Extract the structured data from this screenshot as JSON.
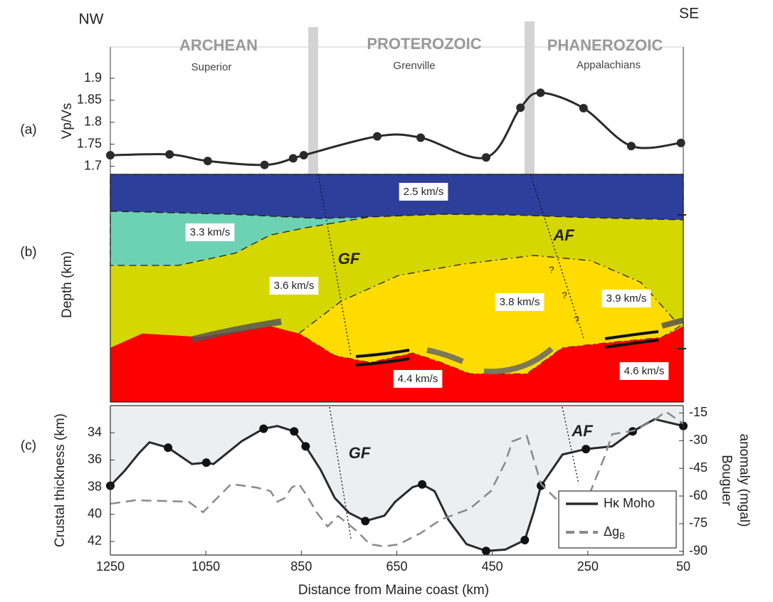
{
  "header": {
    "left": "NW",
    "right": "SE",
    "terranes": [
      {
        "name": "ARCHEAN",
        "province": "Superior"
      },
      {
        "name": "PROTEROZOIC",
        "province": "Grenville"
      },
      {
        "name": "PHANEROZOIC",
        "province": "Appalachians"
      }
    ]
  },
  "chart_data": [
    {
      "type": "line",
      "panel_label": "(a)",
      "ylabel": "Vp/Vs",
      "xlim": [
        1250,
        50
      ],
      "ylim": [
        1.68,
        1.9
      ],
      "yticks": [
        1.7,
        1.75,
        1.8,
        1.85,
        1.9
      ],
      "series": [
        {
          "color": "#2a2a2a",
          "smooth": true,
          "markers": true,
          "x": [
            1250,
            1126,
            1046,
            927,
            867,
            845,
            691,
            600,
            463,
            391,
            349,
            259,
            159,
            55
          ],
          "values": [
            1.725,
            1.727,
            1.712,
            1.703,
            1.718,
            1.725,
            1.768,
            1.765,
            1.72,
            1.833,
            1.867,
            1.832,
            1.746,
            1.753
          ]
        }
      ]
    },
    {
      "type": "section",
      "panel_label": "(b)",
      "ylabel": "Depth (km)",
      "xlim": [
        1250,
        50
      ],
      "ylim": [
        -1,
        51.5
      ],
      "invert_y": true,
      "yticks": [
        10,
        20,
        30,
        40,
        50
      ],
      "layers": [
        {
          "labels": [
            "3.6 km/s",
            "3.9 km/s"
          ],
          "color": "#d5d700",
          "x": [
            1250,
            50,
            50,
            1250
          ],
          "depth": [
            -1,
            -1,
            51.5,
            51.5
          ]
        },
        {
          "labels": [
            "2.5 km/s"
          ],
          "color": "#2d3e9b",
          "stroke": "dashed",
          "x": [
            1250,
            50,
            50,
            250,
            400,
            550,
            700,
            810,
            1000,
            1250
          ],
          "depth": [
            -1,
            -1,
            9.5,
            9,
            8.4,
            8.2,
            8.8,
            9.2,
            8.2,
            7.5
          ]
        },
        {
          "labels": [
            "3.3 km/s"
          ],
          "color": "#6dd2b4",
          "stroke": "dashed",
          "x": [
            1250,
            1000,
            810,
            706,
            840,
            915,
            989,
            1108,
            1250
          ],
          "depth": [
            7.5,
            8.2,
            9.2,
            8.8,
            11.3,
            13,
            17.2,
            20,
            20
          ]
        },
        {
          "labels": [
            "3.8 km/s"
          ],
          "color": "#ffdc00",
          "stroke": "dash-dot",
          "x": [
            855,
            766,
            646,
            512,
            363,
            244,
            139,
            57,
            95,
            214,
            303,
            378,
            497,
            557,
            616,
            706,
            780,
            855
          ],
          "depth": [
            35.7,
            28.2,
            22.3,
            19.7,
            17.7,
            18.9,
            23.9,
            34,
            36.6,
            37.9,
            39,
            45,
            45,
            42.4,
            40.2,
            42.4,
            40.8,
            35.7
          ]
        },
        {
          "labels": [
            "4.4 km/s",
            "4.6 km/s"
          ],
          "color": "#fe0000",
          "x": [
            1250,
            1183,
            1064,
            915,
            855,
            780,
            706,
            616,
            557,
            497,
            378,
            303,
            214,
            95,
            50,
            50,
            1250
          ],
          "depth": [
            39,
            35.7,
            36.5,
            34,
            35.7,
            40.8,
            42.4,
            40.2,
            42.4,
            45,
            45,
            39,
            37.9,
            36.6,
            34,
            51.5,
            51.5
          ]
        }
      ],
      "faults": [
        "GF",
        "AF"
      ],
      "question_marks": [
        "?",
        "?",
        "?"
      ]
    },
    {
      "type": "line",
      "panel_label": "(c)",
      "ylabel": "Crustal thickness (km)",
      "y2label": [
        "Bouguer",
        "anomaly (mgal)"
      ],
      "xlabel": "Distance from Maine coast (km)",
      "xlim": [
        1250,
        50
      ],
      "xticks": [
        1250,
        1050,
        850,
        650,
        450,
        250,
        50
      ],
      "ylim": [
        32,
        43
      ],
      "invert_y": true,
      "yticks": [
        34,
        36,
        38,
        40,
        42
      ],
      "y2lim": [
        -92,
        -11
      ],
      "y2ticks": [
        -15,
        -30,
        -45,
        -60,
        -75,
        -90
      ],
      "faults": [
        "GF",
        "AF"
      ],
      "legend": "lower right",
      "series": [
        {
          "name": "Hκ Moho",
          "color": "#2a2a2a",
          "fill": "#eceef1",
          "x": [
            1250,
            1220,
            1190,
            1168,
            1129,
            1079,
            1049,
            1034,
            974,
            929,
            900,
            865,
            841,
            810,
            780,
            750,
            716,
            676,
            654,
            617,
            597,
            571,
            542,
            504,
            463,
            423,
            382,
            363,
            348,
            303,
            254,
            199,
            156,
            110,
            50
          ],
          "values": [
            37.9,
            36.8,
            35.5,
            34.7,
            35.1,
            36.3,
            36.2,
            36.3,
            34.6,
            33.7,
            33.5,
            33.9,
            35,
            36.7,
            38.8,
            39.9,
            40.5,
            40.1,
            39.1,
            38,
            37.8,
            38.3,
            40.4,
            42.2,
            42.7,
            42.6,
            41.9,
            39.8,
            37.9,
            35.6,
            35.2,
            35,
            33.9,
            33,
            33.5
          ]
        },
        {
          "color": "#111111",
          "markers": true,
          "line": false,
          "x": [
            1250,
            1129,
            1049,
            929,
            865,
            841,
            716,
            597,
            463,
            382,
            348,
            254,
            156,
            50
          ],
          "values": [
            37.9,
            35.1,
            36.2,
            33.7,
            33.9,
            35,
            40.5,
            37.8,
            42.7,
            41.9,
            37.9,
            35.2,
            33.9,
            33.5
          ]
        },
        {
          "name": "Δg",
          "name_subscript": "B",
          "color": "#8a8a8a",
          "dashed": true,
          "axis": "y2",
          "x": [
            1250,
            1220,
            1198,
            1138,
            1086,
            1056,
            1034,
            997,
            944,
            915,
            900,
            885,
            870,
            855,
            840,
            818,
            795,
            773,
            736,
            706,
            676,
            646,
            602,
            557,
            497,
            453,
            423,
            408,
            378,
            348,
            318,
            274,
            244,
            214,
            199,
            154,
            110,
            87,
            50
          ],
          "values": [
            -64.2,
            -63.1,
            -62.3,
            -62.7,
            -63.1,
            -68.8,
            -63.1,
            -53.5,
            -55.4,
            -57.3,
            -63.1,
            -61.2,
            -55.4,
            -53.5,
            -59.2,
            -68.8,
            -76.5,
            -70.8,
            -78.5,
            -86.2,
            -87.3,
            -86.2,
            -80.4,
            -72.7,
            -66.9,
            -57.3,
            -41.9,
            -30.4,
            -27.3,
            -53.5,
            -61.2,
            -65,
            -57.3,
            -38.1,
            -26.5,
            -24.6,
            -18.8,
            -14.2,
            -20.8
          ]
        }
      ]
    }
  ]
}
